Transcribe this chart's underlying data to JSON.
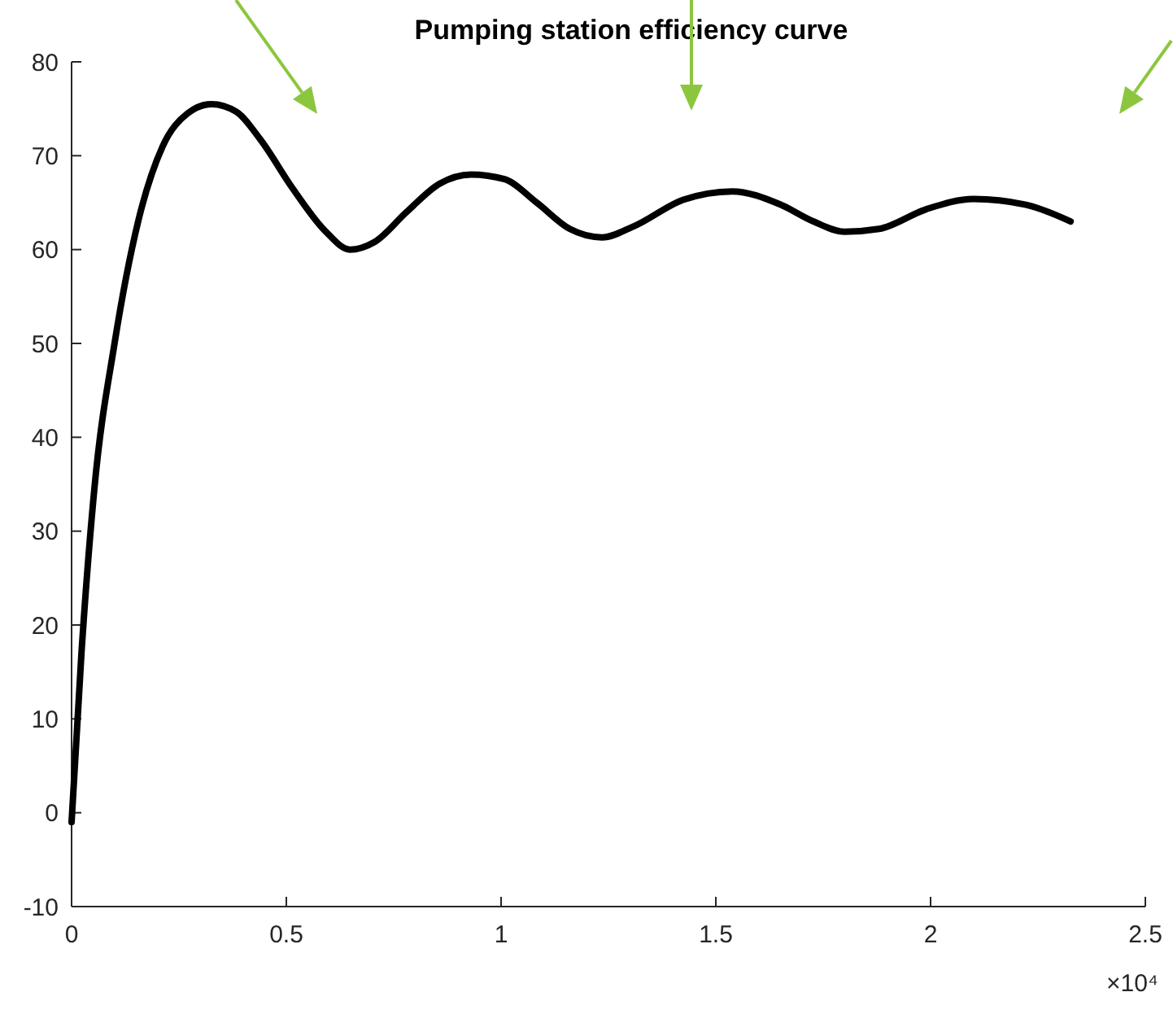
{
  "chart_data": {
    "type": "line",
    "title": "Pumping station efficiency curve",
    "x": [
      0,
      0.023,
      0.053,
      0.1,
      0.155,
      0.212,
      0.27,
      0.326,
      0.383,
      0.44,
      0.515,
      0.59,
      0.648,
      0.705,
      0.78,
      0.856,
      0.93,
      1.008,
      1.083,
      1.16,
      1.235,
      1.31,
      1.424,
      1.538,
      1.65,
      1.727,
      1.8,
      1.88,
      1.99,
      2.1,
      2.22,
      2.326
    ],
    "series": [
      {
        "color": "#000000",
        "values": [
          -1,
          17,
          34.5,
          50,
          63,
          71,
          74.5,
          75.5,
          74.7,
          71.7,
          66.5,
          62,
          60,
          60.8,
          64,
          67,
          68,
          67.5,
          65,
          62.2,
          61.3,
          62.5,
          65.3,
          66.2,
          64.8,
          63,
          61.9,
          62.2,
          64.3,
          65.4,
          64.8,
          63
        ]
      }
    ],
    "xlim": [
      0,
      2.5
    ],
    "ylim": [
      -10,
      80
    ],
    "xticks": [
      0,
      0.5,
      1,
      1.5,
      2,
      2.5
    ],
    "yticks": [
      -10,
      0,
      10,
      20,
      30,
      40,
      50,
      60,
      70,
      80
    ],
    "grid": false,
    "marker": "none",
    "line_style": "solid",
    "annotations": [
      "×10⁴"
    ]
  }
}
